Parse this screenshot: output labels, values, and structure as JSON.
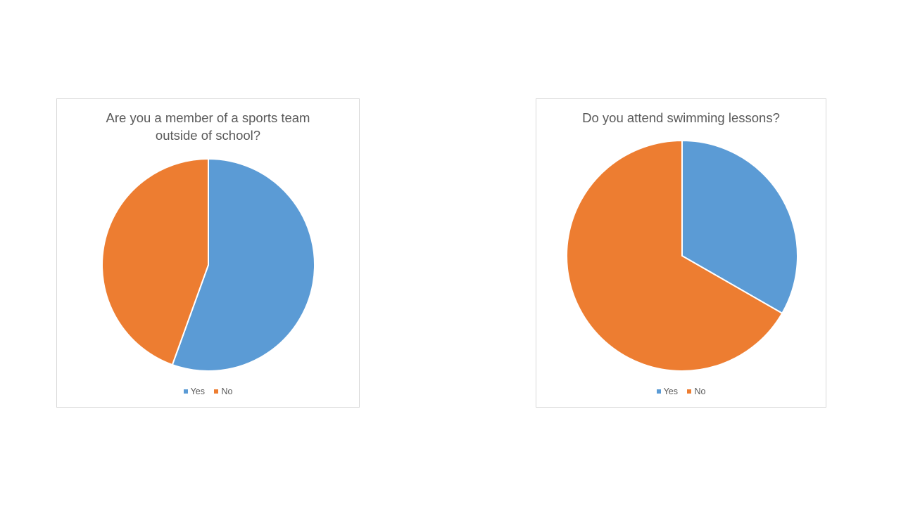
{
  "chart_data": [
    {
      "type": "pie",
      "title_lines": [
        "Are you a member of a sports team",
        "outside of school?"
      ],
      "categories": [
        "Yes",
        "No"
      ],
      "values": [
        55.5,
        44.5
      ],
      "colors": [
        "#5B9BD5",
        "#ED7D31"
      ],
      "legend_position": "bottom"
    },
    {
      "type": "pie",
      "title_lines": [
        "Do you attend swimming lessons?"
      ],
      "categories": [
        "Yes",
        "No"
      ],
      "values": [
        33.3,
        66.7
      ],
      "colors": [
        "#5B9BD5",
        "#ED7D31"
      ],
      "legend_position": "bottom"
    }
  ]
}
